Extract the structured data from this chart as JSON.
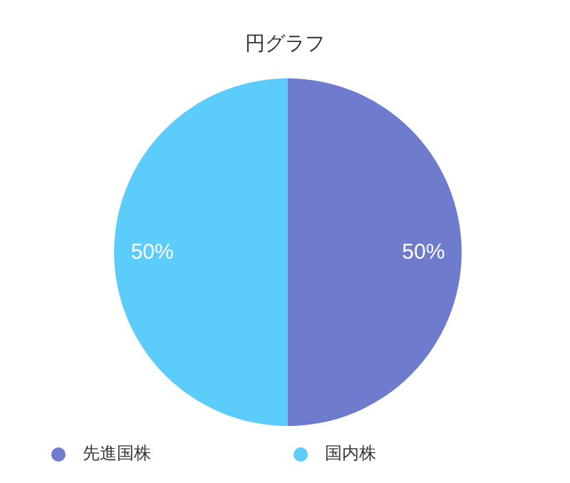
{
  "chart_data": {
    "type": "pie",
    "title": "円グラフ",
    "categories": [
      "先進国株",
      "国内株"
    ],
    "values": [
      50,
      50
    ],
    "colors": [
      "#6f7bcc",
      "#5ccdfb"
    ],
    "value_labels": [
      "50%",
      "50%"
    ],
    "legend": "bottom"
  }
}
